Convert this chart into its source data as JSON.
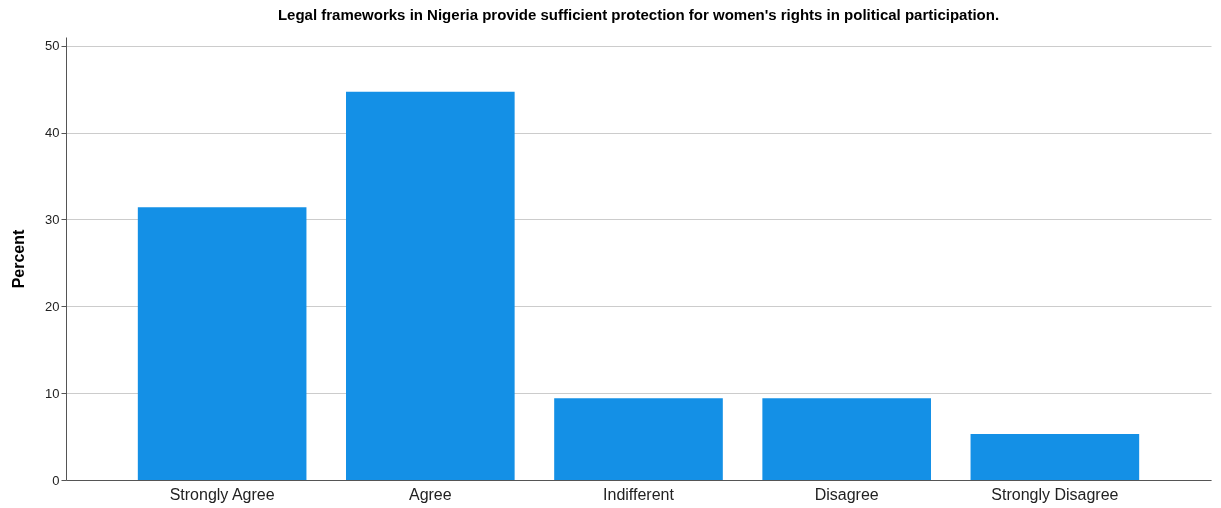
{
  "chart_data": {
    "type": "bar",
    "title": "Legal frameworks in Nigeria provide sufficient protection for women's rights in political participation.",
    "ylabel": "Percent",
    "categories": [
      "Strongly Agree",
      "Agree",
      "Indifferent",
      "Disagree",
      "Strongly Disagree"
    ],
    "values": [
      31.4,
      44.7,
      9.4,
      9.4,
      5.3
    ],
    "color": "#1490e6",
    "ylim": [
      0,
      51
    ],
    "yticks": [
      0,
      10,
      20,
      30,
      40,
      50
    ],
    "grid": "y"
  }
}
